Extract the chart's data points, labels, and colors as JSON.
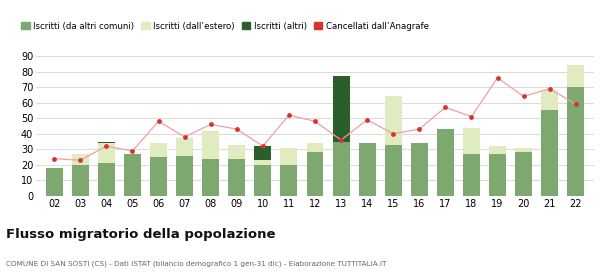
{
  "years": [
    "02",
    "03",
    "04",
    "05",
    "06",
    "07",
    "08",
    "09",
    "10",
    "11",
    "12",
    "13",
    "14",
    "15",
    "16",
    "17",
    "18",
    "19",
    "20",
    "21",
    "22"
  ],
  "iscritti_altri_comuni": [
    18,
    20,
    21,
    27,
    25,
    26,
    24,
    24,
    20,
    20,
    28,
    35,
    34,
    33,
    34,
    43,
    27,
    27,
    28,
    55,
    70
  ],
  "iscritti_estero": [
    0,
    7,
    13,
    0,
    9,
    11,
    18,
    9,
    3,
    11,
    6,
    0,
    0,
    31,
    0,
    0,
    17,
    5,
    3,
    13,
    14
  ],
  "iscritti_altri": [
    0,
    0,
    1,
    0,
    0,
    0,
    0,
    0,
    9,
    0,
    0,
    42,
    0,
    0,
    0,
    0,
    0,
    0,
    0,
    0,
    0
  ],
  "cancellati": [
    24,
    23,
    32,
    29,
    48,
    38,
    46,
    43,
    32,
    52,
    48,
    36,
    49,
    40,
    43,
    57,
    51,
    76,
    64,
    69,
    59
  ],
  "color_iscritti_comuni": "#7da870",
  "color_iscritti_estero": "#e0ecc0",
  "color_iscritti_altri": "#2a5e2a",
  "color_cancellati": "#d93030",
  "color_cancellati_line": "#f0a0a0",
  "ylim": [
    0,
    90
  ],
  "yticks": [
    0,
    10,
    20,
    30,
    40,
    50,
    60,
    70,
    80,
    90
  ],
  "title": "Flusso migratorio della popolazione",
  "subtitle": "COMUNE DI SAN SOSTI (CS) - Dati ISTAT (bilancio demografico 1 gen-31 dic) - Elaborazione TUTTITALIA.IT",
  "legend_labels": [
    "Iscritti (da altri comuni)",
    "Iscritti (dall’estero)",
    "Iscritti (altri)",
    "Cancellati dall’Anagrafe"
  ],
  "background_color": "#ffffff",
  "grid_color": "#cccccc"
}
